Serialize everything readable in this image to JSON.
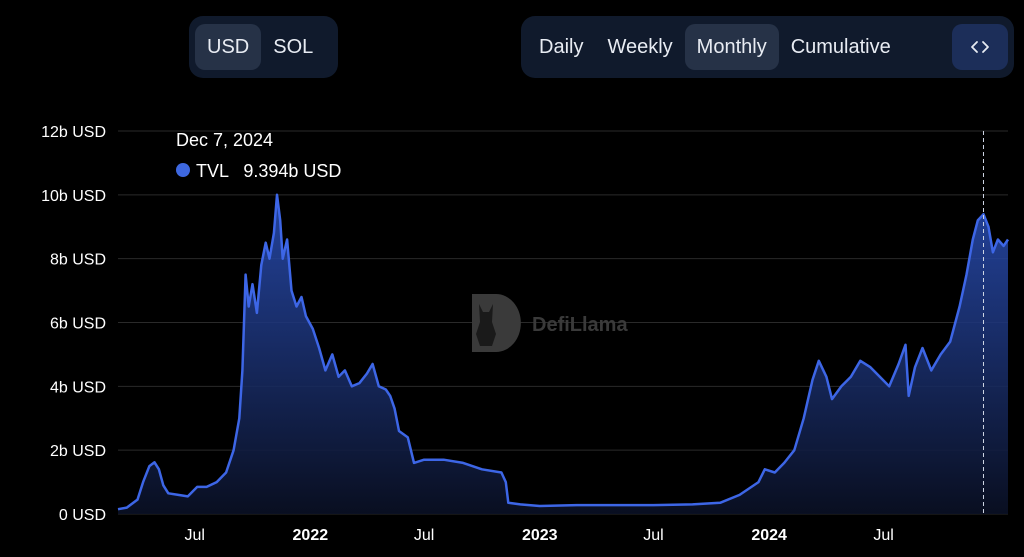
{
  "controls": {
    "currency": {
      "options": [
        "USD",
        "SOL"
      ],
      "selected": "USD"
    },
    "period": {
      "options": [
        "Daily",
        "Weekly",
        "Monthly",
        "Cumulative"
      ],
      "selected": "Monthly"
    },
    "embed_icon": "code-brackets-icon"
  },
  "watermark": {
    "text": "DefiLlama",
    "icon": "llama-logo-icon"
  },
  "tooltip": {
    "date": "Dec 7, 2024",
    "series": "TVL",
    "value": "9.394b USD",
    "dot_color": "#3e68e0"
  },
  "colors": {
    "line": "#3d66e6",
    "fill_top": "#2a4fb8",
    "fill_bottom": "#0a1024",
    "grid": "#2a2a2a",
    "background": "#000000"
  },
  "chart_data": {
    "type": "area",
    "series": [
      {
        "name": "TVL",
        "unit": "USD"
      }
    ],
    "ylim": [
      0,
      12
    ],
    "y_unit": "b USD",
    "y_ticks": [
      {
        "value": 0,
        "label": "0 USD"
      },
      {
        "value": 2,
        "label": "2b USD"
      },
      {
        "value": 4,
        "label": "4b USD"
      },
      {
        "value": 6,
        "label": "6b USD"
      },
      {
        "value": 8,
        "label": "8b USD"
      },
      {
        "value": 10,
        "label": "10b USD"
      },
      {
        "value": 12,
        "label": "12b USD"
      }
    ],
    "xlim": [
      "2021-03-01",
      "2025-01-15"
    ],
    "x_ticks": [
      {
        "date": "2021-07-01",
        "label": "Jul",
        "bold": false
      },
      {
        "date": "2022-01-01",
        "label": "2022",
        "bold": true
      },
      {
        "date": "2022-07-01",
        "label": "Jul",
        "bold": false
      },
      {
        "date": "2023-01-01",
        "label": "2023",
        "bold": true
      },
      {
        "date": "2023-07-01",
        "label": "Jul",
        "bold": false
      },
      {
        "date": "2024-01-01",
        "label": "2024",
        "bold": true
      },
      {
        "date": "2024-07-01",
        "label": "Jul",
        "bold": false
      }
    ],
    "grid": true,
    "crosshair_date": "2024-12-07",
    "points": [
      [
        "2021-03-01",
        0.15
      ],
      [
        "2021-03-15",
        0.2
      ],
      [
        "2021-04-01",
        0.45
      ],
      [
        "2021-04-10",
        1.0
      ],
      [
        "2021-04-20",
        1.5
      ],
      [
        "2021-04-28",
        1.62
      ],
      [
        "2021-05-05",
        1.4
      ],
      [
        "2021-05-12",
        0.9
      ],
      [
        "2021-05-20",
        0.65
      ],
      [
        "2021-06-05",
        0.6
      ],
      [
        "2021-06-20",
        0.55
      ],
      [
        "2021-07-05",
        0.85
      ],
      [
        "2021-07-20",
        0.85
      ],
      [
        "2021-08-05",
        1.0
      ],
      [
        "2021-08-20",
        1.3
      ],
      [
        "2021-09-01",
        2.0
      ],
      [
        "2021-09-10",
        3.0
      ],
      [
        "2021-09-15",
        4.5
      ],
      [
        "2021-09-20",
        7.5
      ],
      [
        "2021-09-25",
        6.5
      ],
      [
        "2021-10-01",
        7.2
      ],
      [
        "2021-10-08",
        6.3
      ],
      [
        "2021-10-15",
        7.8
      ],
      [
        "2021-10-22",
        8.5
      ],
      [
        "2021-10-28",
        8.0
      ],
      [
        "2021-11-04",
        8.8
      ],
      [
        "2021-11-09",
        10.0
      ],
      [
        "2021-11-14",
        9.2
      ],
      [
        "2021-11-18",
        8.0
      ],
      [
        "2021-11-25",
        8.6
      ],
      [
        "2021-12-02",
        7.0
      ],
      [
        "2021-12-10",
        6.5
      ],
      [
        "2021-12-18",
        6.8
      ],
      [
        "2021-12-25",
        6.2
      ],
      [
        "2022-01-05",
        5.8
      ],
      [
        "2022-01-15",
        5.2
      ],
      [
        "2022-01-25",
        4.5
      ],
      [
        "2022-02-05",
        5.0
      ],
      [
        "2022-02-15",
        4.3
      ],
      [
        "2022-02-25",
        4.5
      ],
      [
        "2022-03-08",
        4.0
      ],
      [
        "2022-03-20",
        4.1
      ],
      [
        "2022-04-01",
        4.4
      ],
      [
        "2022-04-10",
        4.7
      ],
      [
        "2022-04-20",
        4.0
      ],
      [
        "2022-05-01",
        3.9
      ],
      [
        "2022-05-08",
        3.7
      ],
      [
        "2022-05-15",
        3.3
      ],
      [
        "2022-05-22",
        2.6
      ],
      [
        "2022-06-05",
        2.4
      ],
      [
        "2022-06-15",
        1.6
      ],
      [
        "2022-07-01",
        1.7
      ],
      [
        "2022-08-01",
        1.7
      ],
      [
        "2022-09-01",
        1.6
      ],
      [
        "2022-10-01",
        1.4
      ],
      [
        "2022-11-01",
        1.3
      ],
      [
        "2022-11-08",
        1.0
      ],
      [
        "2022-11-12",
        0.35
      ],
      [
        "2022-12-01",
        0.3
      ],
      [
        "2023-01-01",
        0.25
      ],
      [
        "2023-03-01",
        0.28
      ],
      [
        "2023-05-01",
        0.28
      ],
      [
        "2023-07-01",
        0.28
      ],
      [
        "2023-09-01",
        0.3
      ],
      [
        "2023-10-15",
        0.35
      ],
      [
        "2023-11-15",
        0.6
      ],
      [
        "2023-12-15",
        1.0
      ],
      [
        "2023-12-25",
        1.4
      ],
      [
        "2024-01-10",
        1.3
      ],
      [
        "2024-01-25",
        1.6
      ],
      [
        "2024-02-10",
        2.0
      ],
      [
        "2024-02-25",
        3.0
      ],
      [
        "2024-03-10",
        4.2
      ],
      [
        "2024-03-20",
        4.8
      ],
      [
        "2024-04-01",
        4.3
      ],
      [
        "2024-04-10",
        3.6
      ],
      [
        "2024-04-25",
        4.0
      ],
      [
        "2024-05-10",
        4.3
      ],
      [
        "2024-05-25",
        4.8
      ],
      [
        "2024-06-10",
        4.6
      ],
      [
        "2024-06-25",
        4.3
      ],
      [
        "2024-07-10",
        4.0
      ],
      [
        "2024-07-25",
        4.7
      ],
      [
        "2024-08-05",
        5.3
      ],
      [
        "2024-08-10",
        3.7
      ],
      [
        "2024-08-20",
        4.6
      ],
      [
        "2024-09-01",
        5.2
      ],
      [
        "2024-09-15",
        4.5
      ],
      [
        "2024-09-30",
        5.0
      ],
      [
        "2024-10-15",
        5.4
      ],
      [
        "2024-10-30",
        6.5
      ],
      [
        "2024-11-10",
        7.5
      ],
      [
        "2024-11-20",
        8.6
      ],
      [
        "2024-11-28",
        9.2
      ],
      [
        "2024-12-07",
        9.394
      ],
      [
        "2024-12-15",
        9.0
      ],
      [
        "2024-12-22",
        8.2
      ],
      [
        "2024-12-30",
        8.6
      ],
      [
        "2025-01-08",
        8.4
      ],
      [
        "2025-01-15",
        8.6
      ]
    ]
  }
}
